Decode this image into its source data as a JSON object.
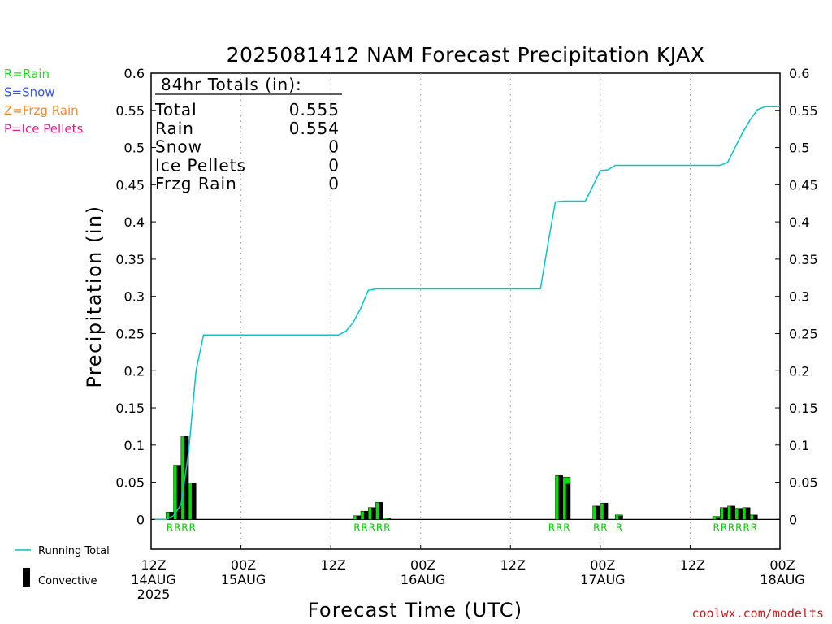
{
  "chart_data": {
    "type": "bar",
    "title": "2025081412 NAM Forecast Precipitation KJAX",
    "xlabel": "Forecast Time (UTC)",
    "ylabel": "Precipitation (in)",
    "ylim": [
      -0.04,
      0.6
    ],
    "yticks": [
      "0",
      "0.05",
      "0.1",
      "0.15",
      "0.2",
      "0.25",
      "0.3",
      "0.35",
      "0.4",
      "0.45",
      "0.5",
      "0.55",
      "0.6"
    ],
    "xlim_hours": [
      0,
      84
    ],
    "x_ticks": [
      {
        "hour": 0,
        "line1": "12Z",
        "line2": "14AUG",
        "line3": "2025"
      },
      {
        "hour": 12,
        "line1": "00Z",
        "line2": "15AUG",
        "line3": ""
      },
      {
        "hour": 24,
        "line1": "12Z",
        "line2": "",
        "line3": ""
      },
      {
        "hour": 36,
        "line1": "00Z",
        "line2": "16AUG",
        "line3": ""
      },
      {
        "hour": 48,
        "line1": "12Z",
        "line2": "",
        "line3": ""
      },
      {
        "hour": 60,
        "line1": "00Z",
        "line2": "17AUG",
        "line3": ""
      },
      {
        "hour": 72,
        "line1": "12Z",
        "line2": "",
        "line3": ""
      },
      {
        "hour": 84,
        "line1": "00Z",
        "line2": "18AUG",
        "line3": ""
      }
    ],
    "grid": "vertical dotted at 00Z/12Z",
    "series": [
      {
        "name": "Running Total",
        "kind": "line",
        "color": "#00c8c8",
        "x": [
          0.5,
          2,
          3,
          4,
          5,
          6,
          7,
          25,
          26,
          27,
          28,
          29,
          30,
          31,
          32,
          33,
          34,
          52,
          53,
          54,
          55,
          56,
          57,
          58,
          59,
          60,
          61,
          62,
          63,
          64,
          65,
          76,
          77,
          78,
          79,
          80,
          81,
          82,
          83,
          84
        ],
        "y": [
          0,
          0,
          0.005,
          0.02,
          0.09,
          0.2,
          0.248,
          0.248,
          0.253,
          0.265,
          0.284,
          0.308,
          0.31,
          0.31,
          0.31,
          0.31,
          0.31,
          0.31,
          0.37,
          0.427,
          0.428,
          0.428,
          0.428,
          0.428,
          0.448,
          0.469,
          0.47,
          0.476,
          0.476,
          0.476,
          0.476,
          0.476,
          0.48,
          0.5,
          0.52,
          0.537,
          0.551,
          0.555,
          0.555,
          0.555
        ]
      },
      {
        "name": "Total",
        "kind": "bar",
        "color": "#00e000",
        "x": [
          3,
          4,
          5,
          6,
          28,
          29,
          30,
          31,
          32,
          55,
          56,
          60,
          61,
          63,
          76,
          77,
          78,
          79,
          80,
          81
        ],
        "values": [
          0.01,
          0.073,
          0.112,
          0.049,
          0.005,
          0.011,
          0.016,
          0.023,
          0.002,
          0.059,
          0.057,
          0.018,
          0.022,
          0.006,
          0.004,
          0.016,
          0.018,
          0.015,
          0.016,
          0.006
        ]
      },
      {
        "name": "Convective",
        "kind": "bar",
        "color": "#000000",
        "x": [
          3,
          4,
          5,
          6,
          28,
          29,
          30,
          31,
          32,
          55,
          56,
          60,
          61,
          63,
          76,
          77,
          78,
          79,
          80,
          81
        ],
        "values": [
          0.01,
          0.073,
          0.112,
          0.049,
          0.005,
          0.011,
          0.016,
          0.023,
          0.001,
          0.059,
          0.048,
          0.018,
          0.022,
          0.005,
          0.003,
          0.016,
          0.018,
          0.015,
          0.016,
          0.006
        ]
      }
    ],
    "ptype_labels": [
      {
        "hour": 3,
        "text": "R"
      },
      {
        "hour": 4,
        "text": "R"
      },
      {
        "hour": 5,
        "text": "R"
      },
      {
        "hour": 6,
        "text": "R"
      },
      {
        "hour": 28,
        "text": "R"
      },
      {
        "hour": 29,
        "text": "R"
      },
      {
        "hour": 30,
        "text": "R"
      },
      {
        "hour": 31,
        "text": "R"
      },
      {
        "hour": 32,
        "text": "R"
      },
      {
        "hour": 54,
        "text": "R"
      },
      {
        "hour": 55,
        "text": "R"
      },
      {
        "hour": 56,
        "text": "R"
      },
      {
        "hour": 60,
        "text": "R"
      },
      {
        "hour": 61,
        "text": "R"
      },
      {
        "hour": 63,
        "text": "R"
      },
      {
        "hour": 76,
        "text": "R"
      },
      {
        "hour": 77,
        "text": "R"
      },
      {
        "hour": 78,
        "text": "R"
      },
      {
        "hour": 79,
        "text": "R"
      },
      {
        "hour": 80,
        "text": "R"
      },
      {
        "hour": 81,
        "text": "R"
      }
    ],
    "totals_box": {
      "header": "84hr Totals (in):",
      "rows": [
        {
          "label": "Total",
          "value": "0.555"
        },
        {
          "label": "Rain",
          "value": "0.554"
        },
        {
          "label": "Snow",
          "value": "0"
        },
        {
          "label": "Ice Pellets",
          "value": "0"
        },
        {
          "label": "Frzg Rain",
          "value": "0"
        }
      ]
    }
  },
  "ptype_legend": [
    {
      "text": "R=Rain",
      "color": "#22dd22"
    },
    {
      "text": "S=Snow",
      "color": "#3355ee"
    },
    {
      "text": "Z=Frzg Rain",
      "color": "#f08a2a"
    },
    {
      "text": "P=Ice Pellets",
      "color": "#e81e8c"
    }
  ],
  "bottom_legend": {
    "running_total": "Running Total",
    "convective": "Convective"
  },
  "credit": "coolwx.com/modelts"
}
